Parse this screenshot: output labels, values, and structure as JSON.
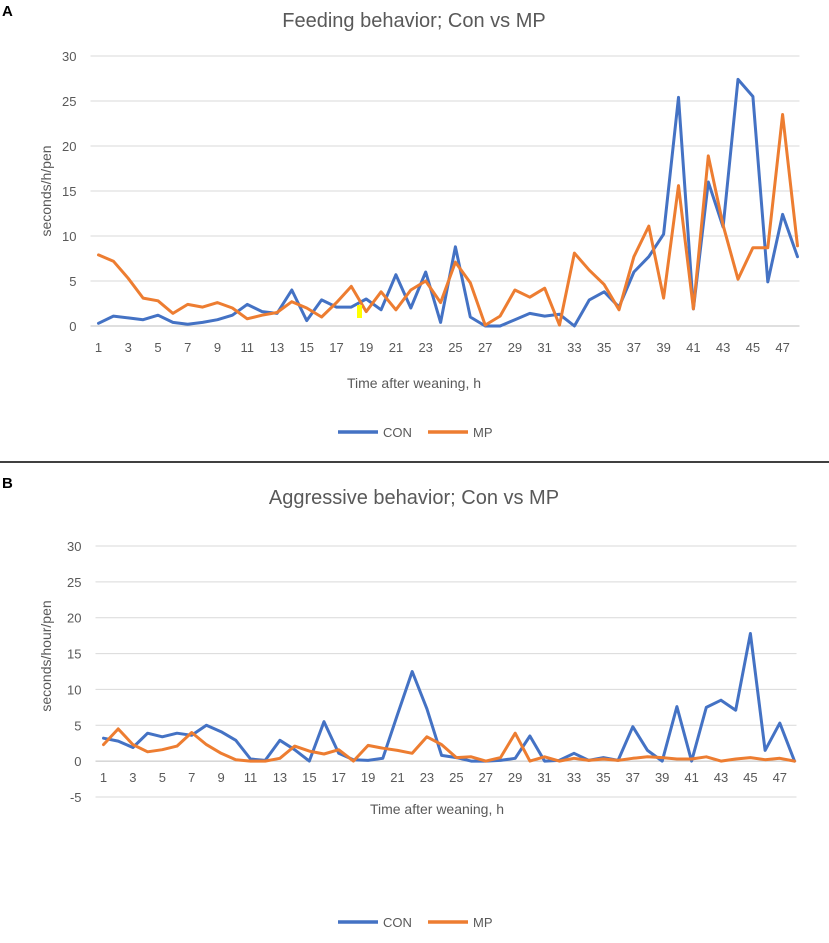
{
  "colors": {
    "con": "#4472C4",
    "mp": "#ED7D31",
    "highlight": "#FFFF00"
  },
  "chart_data": [
    {
      "panel": "A",
      "type": "line",
      "title": "Feeding behavior; Con vs MP",
      "xlabel": "Time after weaning, h",
      "ylabel": "seconds/h/pen",
      "ylim": [
        0,
        30
      ],
      "yticks": [
        0,
        5,
        10,
        15,
        20,
        25,
        30
      ],
      "xtick_labels": [
        "1",
        "3",
        "5",
        "7",
        "9",
        "11",
        "13",
        "15",
        "17",
        "19",
        "21",
        "23",
        "25",
        "27",
        "29",
        "31",
        "33",
        "35",
        "37",
        "39",
        "41",
        "43",
        "45",
        "47"
      ],
      "legend": [
        "CON",
        "MP"
      ],
      "x": [
        1,
        2,
        3,
        4,
        5,
        6,
        7,
        8,
        9,
        10,
        11,
        12,
        13,
        14,
        15,
        16,
        17,
        18,
        19,
        20,
        21,
        22,
        23,
        24,
        25,
        26,
        27,
        28,
        29,
        30,
        31,
        32,
        33,
        34,
        35,
        36,
        37,
        38,
        39,
        40,
        41,
        42,
        43,
        44,
        45,
        46,
        47,
        48
      ],
      "series": [
        {
          "name": "CON",
          "values": [
            0.3,
            1.1,
            0.9,
            0.7,
            1.2,
            0.4,
            0.2,
            0.4,
            0.7,
            1.2,
            2.4,
            1.6,
            1.4,
            4.0,
            0.6,
            2.9,
            2.1,
            2.1,
            3.0,
            1.8,
            5.7,
            2.0,
            6.0,
            0.4,
            8.8,
            1.0,
            0.0,
            0.0,
            0.7,
            1.4,
            1.1,
            1.3,
            0.0,
            2.9,
            3.8,
            2.1,
            6.0,
            7.7,
            10.2,
            25.4,
            1.9,
            16.0,
            11.0,
            27.4,
            25.5,
            4.9,
            12.4,
            7.7
          ]
        },
        {
          "name": "MP",
          "values": [
            7.9,
            7.2,
            5.3,
            3.1,
            2.8,
            1.4,
            2.4,
            2.1,
            2.6,
            2.0,
            0.8,
            1.2,
            1.5,
            2.7,
            2.0,
            1.0,
            2.6,
            4.4,
            1.6,
            3.8,
            1.8,
            4.0,
            5.0,
            2.6,
            7.1,
            4.8,
            0.1,
            1.1,
            4.0,
            3.2,
            4.2,
            0.1,
            8.1,
            6.2,
            4.6,
            1.8,
            7.7,
            11.1,
            3.1,
            15.6,
            1.9,
            18.9,
            11.2,
            5.2,
            8.7,
            8.7,
            23.5,
            8.9
          ]
        }
      ]
    },
    {
      "panel": "B",
      "type": "line",
      "title": "Aggressive behavior; Con vs MP",
      "xlabel": "Time after weaning, h",
      "ylabel": "seconds/hour/pen",
      "ylim": [
        -5,
        30
      ],
      "yticks": [
        -5,
        0,
        5,
        10,
        15,
        20,
        25,
        30
      ],
      "xtick_labels": [
        "1",
        "3",
        "5",
        "7",
        "9",
        "11",
        "13",
        "15",
        "17",
        "19",
        "21",
        "23",
        "25",
        "27",
        "29",
        "31",
        "33",
        "35",
        "37",
        "39",
        "41",
        "43",
        "45",
        "47"
      ],
      "legend": [
        "CON",
        "MP"
      ],
      "x": [
        1,
        2,
        3,
        4,
        5,
        6,
        7,
        8,
        9,
        10,
        11,
        12,
        13,
        14,
        15,
        16,
        17,
        18,
        19,
        20,
        21,
        22,
        23,
        24,
        25,
        26,
        27,
        28,
        29,
        30,
        31,
        32,
        33,
        34,
        35,
        36,
        37,
        38,
        39,
        40,
        41,
        42,
        43,
        44,
        45,
        46,
        47,
        48
      ],
      "series": [
        {
          "name": "CON",
          "values": [
            3.2,
            2.8,
            1.9,
            3.9,
            3.4,
            3.9,
            3.6,
            5.0,
            4.1,
            2.9,
            0.3,
            0.1,
            2.9,
            1.6,
            0.0,
            5.5,
            1.1,
            0.2,
            0.1,
            0.4,
            6.5,
            12.5,
            7.3,
            0.8,
            0.5,
            0.0,
            0.0,
            0.1,
            0.4,
            3.5,
            0.0,
            0.1,
            1.1,
            0.1,
            0.5,
            0.1,
            4.8,
            1.5,
            0.0,
            7.6,
            0.0,
            7.5,
            8.5,
            7.1,
            17.8,
            1.5,
            5.3,
            0.0
          ]
        },
        {
          "name": "MP",
          "values": [
            2.3,
            4.5,
            2.3,
            1.3,
            1.6,
            2.1,
            4.0,
            2.3,
            1.1,
            0.2,
            0.0,
            0.0,
            0.4,
            2.1,
            1.4,
            1.0,
            1.6,
            0.0,
            2.2,
            1.8,
            1.5,
            1.1,
            3.4,
            2.3,
            0.5,
            0.6,
            0.0,
            0.5,
            3.9,
            0.0,
            0.6,
            0.0,
            0.4,
            0.1,
            0.3,
            0.1,
            0.4,
            0.6,
            0.5,
            0.3,
            0.3,
            0.6,
            0.0,
            0.3,
            0.5,
            0.2,
            0.4,
            0.0
          ]
        }
      ]
    }
  ]
}
